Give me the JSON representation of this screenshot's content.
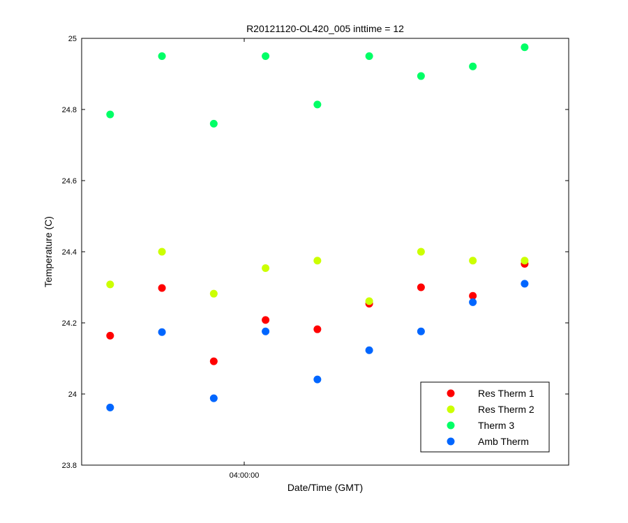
{
  "chart_data": {
    "type": "scatter",
    "title": "R20121120-OL420_005 inttime = 12",
    "xlabel": "Date/Time (GMT)",
    "ylabel": "Temperature (C)",
    "ylim": [
      23.8,
      25
    ],
    "yticks": [
      "23.8",
      "24",
      "24.2",
      "24.4",
      "24.6",
      "24.8",
      "25"
    ],
    "xticks": [
      "04:00:00"
    ],
    "grid": false,
    "legend_position": "lower-right",
    "x": [
      1,
      2,
      3,
      4,
      5,
      6,
      7,
      8,
      9
    ],
    "series": [
      {
        "name": "Res Therm 1",
        "color": "#ff0000",
        "values": [
          24.164,
          24.298,
          24.092,
          24.208,
          24.182,
          24.254,
          24.3,
          24.276,
          24.366
        ]
      },
      {
        "name": "Res Therm 2",
        "color": "#ccff00",
        "values": [
          24.308,
          24.4,
          24.282,
          24.354,
          24.375,
          24.261,
          24.4,
          24.375,
          24.375
        ]
      },
      {
        "name": "Therm 3",
        "color": "#00ff66",
        "values": [
          24.786,
          24.95,
          24.76,
          24.95,
          24.814,
          24.95,
          24.894,
          24.921,
          24.975
        ]
      },
      {
        "name": "Amb Therm",
        "color": "#0066ff",
        "values": [
          23.962,
          24.174,
          23.988,
          24.176,
          24.041,
          24.123,
          24.176,
          24.258,
          24.31
        ]
      }
    ]
  }
}
